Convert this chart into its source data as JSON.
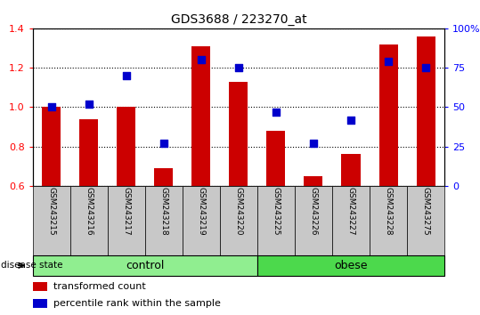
{
  "title": "GDS3688 / 223270_at",
  "samples": [
    "GSM243215",
    "GSM243216",
    "GSM243217",
    "GSM243218",
    "GSM243219",
    "GSM243220",
    "GSM243225",
    "GSM243226",
    "GSM243227",
    "GSM243228",
    "GSM243275"
  ],
  "transformed_count": [
    1.0,
    0.94,
    1.0,
    0.69,
    1.31,
    1.13,
    0.88,
    0.65,
    0.76,
    1.32,
    1.36
  ],
  "percentile_rank": [
    50,
    52,
    70,
    27,
    80,
    75,
    47,
    27,
    42,
    79,
    75
  ],
  "control_count": 6,
  "obese_count": 5,
  "ylim_left": [
    0.6,
    1.4
  ],
  "ylim_right": [
    0,
    100
  ],
  "yticks_left": [
    0.6,
    0.8,
    1.0,
    1.2,
    1.4
  ],
  "yticks_right": [
    0,
    25,
    50,
    75,
    100
  ],
  "ytick_labels_right": [
    "0",
    "25",
    "50",
    "75",
    "100%"
  ],
  "bar_color": "#CC0000",
  "dot_color": "#0000CC",
  "bar_width": 0.5,
  "dot_size": 40,
  "legend_labels": [
    "transformed count",
    "percentile rank within the sample"
  ],
  "disease_state_label": "disease state",
  "sample_bg_color": "#c8c8c8",
  "control_color_light": "#c8f5c8",
  "control_color": "#90EE90",
  "obese_color": "#4CD94C",
  "group_label_control": "control",
  "group_label_obese": "obese"
}
